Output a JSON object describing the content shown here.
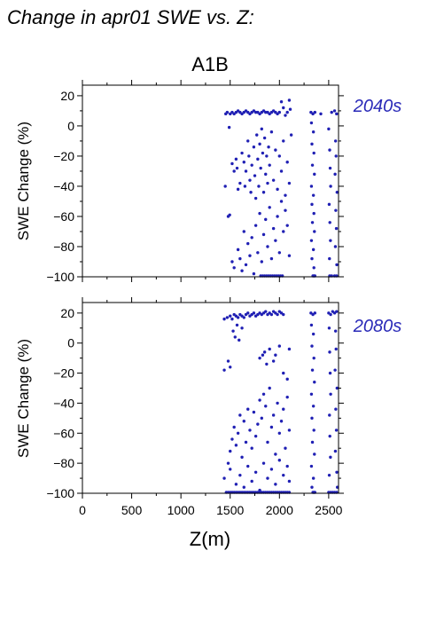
{
  "title": "Change in apr01 SWE vs. Z:",
  "scenario": "A1B",
  "colors": {
    "points": "#2020b4",
    "period_label": "#2a2ab8",
    "axis": "#000000"
  },
  "chart_data": [
    {
      "type": "scatter",
      "period_label": "2040s",
      "ylabel": "SWE Change (%)",
      "xlabel": "",
      "xlim": [
        0,
        2600
      ],
      "ylim": [
        -100,
        27
      ],
      "xticks": [
        0,
        500,
        1000,
        1500,
        2000,
        2500
      ],
      "yticks": [
        -100,
        -80,
        -60,
        -40,
        -20,
        0,
        20
      ],
      "x_tick_labels": [],
      "y_tick_labels": [
        "−100",
        "−80",
        "−60",
        "−40",
        "−20",
        "0",
        "20"
      ],
      "grid": false,
      "points": [
        [
          1455,
          8
        ],
        [
          1470,
          9
        ],
        [
          1490,
          -1
        ],
        [
          1500,
          8
        ],
        [
          1520,
          9
        ],
        [
          1540,
          8
        ],
        [
          1560,
          9
        ],
        [
          1580,
          10
        ],
        [
          1600,
          9
        ],
        [
          1620,
          8
        ],
        [
          1640,
          9
        ],
        [
          1660,
          10
        ],
        [
          1680,
          9
        ],
        [
          1700,
          8
        ],
        [
          1720,
          9
        ],
        [
          1740,
          10
        ],
        [
          1760,
          9
        ],
        [
          1780,
          9
        ],
        [
          1800,
          8
        ],
        [
          1820,
          9
        ],
        [
          1840,
          10
        ],
        [
          1860,
          9
        ],
        [
          1880,
          9
        ],
        [
          1900,
          8
        ],
        [
          1920,
          9
        ],
        [
          1940,
          10
        ],
        [
          1960,
          9
        ],
        [
          1980,
          8
        ],
        [
          2000,
          9
        ],
        [
          2020,
          16
        ],
        [
          2040,
          12
        ],
        [
          2060,
          7
        ],
        [
          2080,
          9
        ],
        [
          2100,
          17
        ],
        [
          2110,
          11
        ],
        [
          1450,
          -40
        ],
        [
          1480,
          -60
        ],
        [
          1495,
          -59
        ],
        [
          1520,
          -25
        ],
        [
          1540,
          -30
        ],
        [
          1560,
          -22
        ],
        [
          1570,
          -28
        ],
        [
          1580,
          -42
        ],
        [
          1600,
          -38
        ],
        [
          1620,
          -18
        ],
        [
          1640,
          -24
        ],
        [
          1650,
          -40
        ],
        [
          1660,
          -30
        ],
        [
          1680,
          -10
        ],
        [
          1690,
          -20
        ],
        [
          1700,
          -36
        ],
        [
          1710,
          -44
        ],
        [
          1720,
          -26
        ],
        [
          1740,
          -14
        ],
        [
          1750,
          -33
        ],
        [
          1760,
          -48
        ],
        [
          1770,
          -6
        ],
        [
          1780,
          -22
        ],
        [
          1790,
          -40
        ],
        [
          1800,
          -12
        ],
        [
          1810,
          -28
        ],
        [
          1820,
          -2
        ],
        [
          1830,
          -18
        ],
        [
          1840,
          -44
        ],
        [
          1850,
          -8
        ],
        [
          1860,
          -32
        ],
        [
          1870,
          -20
        ],
        [
          1880,
          -38
        ],
        [
          1890,
          -14
        ],
        [
          1900,
          -26
        ],
        [
          1920,
          -4
        ],
        [
          1940,
          -36
        ],
        [
          1960,
          -16
        ],
        [
          1980,
          -42
        ],
        [
          2000,
          -20
        ],
        [
          2020,
          -30
        ],
        [
          2040,
          -10
        ],
        [
          2060,
          -46
        ],
        [
          2080,
          -24
        ],
        [
          2100,
          -38
        ],
        [
          2120,
          -6
        ],
        [
          1520,
          -90
        ],
        [
          1540,
          -94
        ],
        [
          1580,
          -82
        ],
        [
          1600,
          -88
        ],
        [
          1620,
          -96
        ],
        [
          1640,
          -70
        ],
        [
          1660,
          -92
        ],
        [
          1680,
          -78
        ],
        [
          1700,
          -86
        ],
        [
          1720,
          -74
        ],
        [
          1740,
          -98
        ],
        [
          1760,
          -66
        ],
        [
          1780,
          -84
        ],
        [
          1800,
          -58
        ],
        [
          1820,
          -90
        ],
        [
          1840,
          -72
        ],
        [
          1860,
          -62
        ],
        [
          1880,
          -80
        ],
        [
          1900,
          -54
        ],
        [
          1920,
          -88
        ],
        [
          1940,
          -68
        ],
        [
          1960,
          -76
        ],
        [
          1980,
          -60
        ],
        [
          2000,
          -84
        ],
        [
          2020,
          -50
        ],
        [
          2040,
          -70
        ],
        [
          2060,
          -56
        ],
        [
          2080,
          -66
        ],
        [
          2100,
          -86
        ],
        [
          1810,
          -100
        ],
        [
          1830,
          -100
        ],
        [
          1850,
          -100
        ],
        [
          1870,
          -100
        ],
        [
          1890,
          -100
        ],
        [
          1910,
          -100
        ],
        [
          1930,
          -100
        ],
        [
          1950,
          -100
        ],
        [
          1970,
          -100
        ],
        [
          1990,
          -100
        ],
        [
          2010,
          -100
        ],
        [
          2030,
          -100
        ],
        [
          2340,
          -100
        ],
        [
          2350,
          -100
        ],
        [
          2360,
          -100
        ],
        [
          2510,
          -100
        ],
        [
          2530,
          -100
        ],
        [
          2560,
          -100
        ],
        [
          2580,
          -100
        ],
        [
          2320,
          9
        ],
        [
          2340,
          8
        ],
        [
          2360,
          9
        ],
        [
          2325,
          2
        ],
        [
          2345,
          -4
        ],
        [
          2330,
          -12
        ],
        [
          2350,
          -18
        ],
        [
          2335,
          -26
        ],
        [
          2355,
          -32
        ],
        [
          2325,
          -40
        ],
        [
          2345,
          -46
        ],
        [
          2330,
          -52
        ],
        [
          2350,
          -58
        ],
        [
          2335,
          -64
        ],
        [
          2355,
          -70
        ],
        [
          2325,
          -76
        ],
        [
          2345,
          -82
        ],
        [
          2330,
          -88
        ],
        [
          2350,
          -94
        ],
        [
          2420,
          8
        ],
        [
          2500,
          -2
        ],
        [
          2510,
          -16
        ],
        [
          2515,
          -28
        ],
        [
          2520,
          -40
        ],
        [
          2505,
          -52
        ],
        [
          2512,
          -64
        ],
        [
          2518,
          -76
        ],
        [
          2508,
          -88
        ],
        [
          2530,
          9
        ],
        [
          2560,
          10
        ],
        [
          2580,
          8
        ],
        [
          2570,
          -10
        ],
        [
          2575,
          -20
        ],
        [
          2565,
          -32
        ],
        [
          2585,
          -44
        ],
        [
          2572,
          -56
        ],
        [
          2578,
          -68
        ],
        [
          2568,
          -80
        ],
        [
          2582,
          -92
        ]
      ]
    },
    {
      "type": "scatter",
      "period_label": "2080s",
      "ylabel": "SWE Change (%)",
      "xlabel": "Z(m)",
      "xlim": [
        0,
        2600
      ],
      "ylim": [
        -100,
        27
      ],
      "xticks": [
        0,
        500,
        1000,
        1500,
        2000,
        2500
      ],
      "yticks": [
        -100,
        -80,
        -60,
        -40,
        -20,
        0,
        20
      ],
      "x_tick_labels": [
        "0",
        "500",
        "1000",
        "1500",
        "2000",
        "2500"
      ],
      "y_tick_labels": [
        "−100",
        "−80",
        "−60",
        "−40",
        "−20",
        "0",
        "20"
      ],
      "grid": false,
      "points": [
        [
          1440,
          16
        ],
        [
          1470,
          17
        ],
        [
          1500,
          18
        ],
        [
          1520,
          16
        ],
        [
          1540,
          19
        ],
        [
          1560,
          18
        ],
        [
          1580,
          17
        ],
        [
          1600,
          19
        ],
        [
          1620,
          18
        ],
        [
          1640,
          17
        ],
        [
          1660,
          19
        ],
        [
          1680,
          20
        ],
        [
          1700,
          18
        ],
        [
          1720,
          19
        ],
        [
          1740,
          20
        ],
        [
          1760,
          18
        ],
        [
          1780,
          19
        ],
        [
          1800,
          20
        ],
        [
          1820,
          19
        ],
        [
          1840,
          20
        ],
        [
          1860,
          21
        ],
        [
          1880,
          19
        ],
        [
          1900,
          20
        ],
        [
          1920,
          19
        ],
        [
          1940,
          21
        ],
        [
          1960,
          20
        ],
        [
          1980,
          19
        ],
        [
          2000,
          21
        ],
        [
          2020,
          20
        ],
        [
          2040,
          19
        ],
        [
          1440,
          -18
        ],
        [
          1480,
          -12
        ],
        [
          1500,
          -16
        ],
        [
          1530,
          8
        ],
        [
          1550,
          4
        ],
        [
          1570,
          12
        ],
        [
          1590,
          2
        ],
        [
          1620,
          10
        ],
        [
          1800,
          -10
        ],
        [
          1830,
          -8
        ],
        [
          1850,
          -6
        ],
        [
          1870,
          -14
        ],
        [
          1900,
          -4
        ],
        [
          1940,
          -12
        ],
        [
          1960,
          -8
        ],
        [
          2000,
          -2
        ],
        [
          2040,
          -20
        ],
        [
          2080,
          -24
        ],
        [
          2100,
          -4
        ],
        [
          1440,
          -90
        ],
        [
          1480,
          -80
        ],
        [
          1500,
          -72
        ],
        [
          1520,
          -64
        ],
        [
          1540,
          -56
        ],
        [
          1560,
          -68
        ],
        [
          1580,
          -60
        ],
        [
          1600,
          -48
        ],
        [
          1620,
          -76
        ],
        [
          1640,
          -52
        ],
        [
          1660,
          -66
        ],
        [
          1680,
          -44
        ],
        [
          1700,
          -58
        ],
        [
          1720,
          -70
        ],
        [
          1740,
          -46
        ],
        [
          1760,
          -62
        ],
        [
          1780,
          -54
        ],
        [
          1800,
          -38
        ],
        [
          1820,
          -50
        ],
        [
          1840,
          -34
        ],
        [
          1860,
          -42
        ],
        [
          1880,
          -66
        ],
        [
          1900,
          -30
        ],
        [
          1920,
          -56
        ],
        [
          1940,
          -48
        ],
        [
          1960,
          -74
        ],
        [
          1980,
          -40
        ],
        [
          2000,
          -60
        ],
        [
          2020,
          -52
        ],
        [
          2040,
          -44
        ],
        [
          2060,
          -70
        ],
        [
          2080,
          -36
        ],
        [
          2100,
          -58
        ],
        [
          1500,
          -84
        ],
        [
          1560,
          -94
        ],
        [
          1600,
          -88
        ],
        [
          1640,
          -96
        ],
        [
          1680,
          -82
        ],
        [
          1720,
          -92
        ],
        [
          1760,
          -86
        ],
        [
          1800,
          -98
        ],
        [
          1840,
          -80
        ],
        [
          1880,
          -90
        ],
        [
          1920,
          -84
        ],
        [
          1960,
          -94
        ],
        [
          2000,
          -78
        ],
        [
          2040,
          -88
        ],
        [
          2080,
          -82
        ],
        [
          2100,
          -92
        ],
        [
          1460,
          -100
        ],
        [
          1480,
          -100
        ],
        [
          1500,
          -100
        ],
        [
          1520,
          -100
        ],
        [
          1540,
          -100
        ],
        [
          1560,
          -100
        ],
        [
          1580,
          -100
        ],
        [
          1600,
          -100
        ],
        [
          1620,
          -100
        ],
        [
          1640,
          -100
        ],
        [
          1660,
          -100
        ],
        [
          1680,
          -100
        ],
        [
          1700,
          -100
        ],
        [
          1720,
          -100
        ],
        [
          1740,
          -100
        ],
        [
          1760,
          -100
        ],
        [
          1780,
          -100
        ],
        [
          1800,
          -100
        ],
        [
          1820,
          -100
        ],
        [
          1840,
          -100
        ],
        [
          1860,
          -100
        ],
        [
          1880,
          -100
        ],
        [
          1900,
          -100
        ],
        [
          1920,
          -100
        ],
        [
          1940,
          -100
        ],
        [
          1960,
          -100
        ],
        [
          1980,
          -100
        ],
        [
          2000,
          -100
        ],
        [
          2020,
          -100
        ],
        [
          2040,
          -100
        ],
        [
          2060,
          -100
        ],
        [
          2080,
          -100
        ],
        [
          2100,
          -100
        ],
        [
          2340,
          -100
        ],
        [
          2350,
          -100
        ],
        [
          2360,
          -100
        ],
        [
          2500,
          -100
        ],
        [
          2520,
          -100
        ],
        [
          2540,
          -100
        ],
        [
          2560,
          -100
        ],
        [
          2580,
          -100
        ],
        [
          2320,
          20
        ],
        [
          2340,
          19
        ],
        [
          2360,
          20
        ],
        [
          2325,
          12
        ],
        [
          2345,
          6
        ],
        [
          2330,
          -2
        ],
        [
          2350,
          -10
        ],
        [
          2335,
          -18
        ],
        [
          2355,
          -26
        ],
        [
          2325,
          -34
        ],
        [
          2345,
          -42
        ],
        [
          2330,
          -50
        ],
        [
          2350,
          -58
        ],
        [
          2335,
          -66
        ],
        [
          2355,
          -74
        ],
        [
          2325,
          -82
        ],
        [
          2345,
          -90
        ],
        [
          2330,
          -96
        ],
        [
          2500,
          20
        ],
        [
          2520,
          19
        ],
        [
          2540,
          21
        ],
        [
          2560,
          20
        ],
        [
          2580,
          21
        ],
        [
          2505,
          10
        ],
        [
          2510,
          -6
        ],
        [
          2515,
          -20
        ],
        [
          2520,
          -34
        ],
        [
          2508,
          -48
        ],
        [
          2512,
          -62
        ],
        [
          2518,
          -76
        ],
        [
          2506,
          -88
        ],
        [
          2570,
          8
        ],
        [
          2575,
          -4
        ],
        [
          2565,
          -18
        ],
        [
          2585,
          -30
        ],
        [
          2572,
          -44
        ],
        [
          2578,
          -58
        ],
        [
          2568,
          -72
        ],
        [
          2582,
          -86
        ],
        [
          2588,
          -96
        ]
      ]
    }
  ]
}
